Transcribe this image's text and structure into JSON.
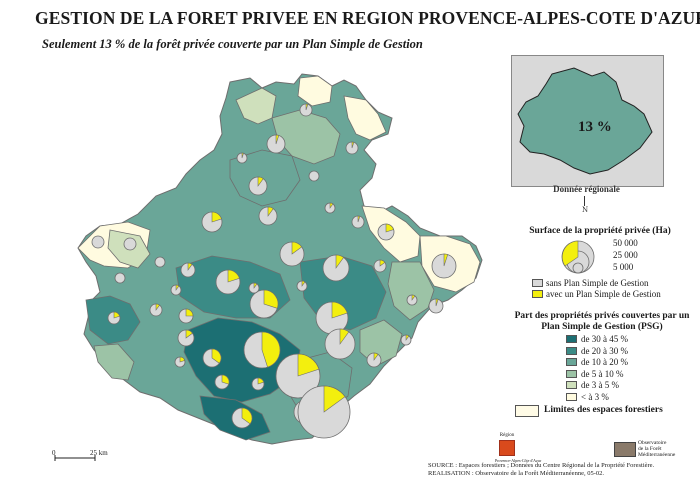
{
  "title": "GESTION DE LA FORET PRIVEE EN REGION PROVENCE-ALPES-COTE D'AZUR",
  "subtitle": "Seulement 13 % de la forêt privée couverte par un Plan Simple de Gestion",
  "inset": {
    "value": "13 %",
    "label": "Donnée régionale"
  },
  "north": "N",
  "legend_size": {
    "title": "Surface de la propriété privée (Ha)",
    "values": [
      "50 000",
      "25 000",
      "5 000"
    ],
    "without_plan": "sans Plan Simple de Gestion",
    "with_plan": "avec un Plan Simple de Gestion"
  },
  "legend_share": {
    "title": "Part des propriétés privés couvertes par un Plan Simple de Gestion (PSG)",
    "classes": [
      {
        "label": "de 30 à 45 %",
        "color": "#1c6f73"
      },
      {
        "label": "de 20 à 30 %",
        "color": "#3b8b86"
      },
      {
        "label": "de 10 à 20 %",
        "color": "#6aa698"
      },
      {
        "label": "de 5 à 10 %",
        "color": "#9cc3a6"
      },
      {
        "label": "de 3 à 5 %",
        "color": "#cfe0bc"
      },
      {
        "label": "< à 3 %",
        "color": "#fffbe0"
      }
    ]
  },
  "limits_label": "Limites des espaces forestiers",
  "scale": {
    "start": "0",
    "end": "25 km"
  },
  "logo_left": {
    "top": "Région",
    "bottom": "Provence-Alpes-Côte d'Azur"
  },
  "logo_right": {
    "line1": "Observatoire",
    "line2": "de la Forêt",
    "line3": "Méditerranéenne"
  },
  "source": {
    "line1": "SOURCE : Espaces forestiers ; Données du Centre Régional de la Propriété Forestière.",
    "line2": "REALISATION : Observatoire de la Forêt Méditerranéenne, 05-02."
  },
  "colors": {
    "pie_without": "#d9d9d9",
    "pie_with": "#f3ef0e",
    "outline": "#6e6e6e",
    "map_bg": "#ffffff"
  }
}
